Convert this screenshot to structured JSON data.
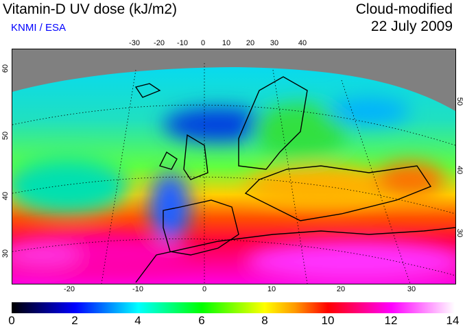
{
  "header": {
    "title": "Vitamin-D UV dose (kJ/m2)",
    "credit": "KNMI / ESA",
    "product": "Cloud-modified",
    "date": "22 July 2009"
  },
  "map": {
    "top_lon_ticks": [
      "-30",
      "-20",
      "-10",
      "0",
      "10",
      "20",
      "30",
      "40"
    ],
    "bottom_lon_ticks": [
      "-20",
      "-10",
      "0",
      "10",
      "20",
      "30"
    ],
    "left_lat_ticks": [
      "60",
      "50",
      "40",
      "30"
    ],
    "right_lat_ticks": [
      "50",
      "40",
      "30"
    ],
    "no_data_color": "#808080"
  },
  "colorbar": {
    "labels": [
      "0",
      "2",
      "4",
      "6",
      "8",
      "10",
      "12",
      "14"
    ],
    "min": 0,
    "max": 14,
    "colors": [
      "#000000",
      "#0000ff",
      "#00ffff",
      "#00ff00",
      "#ffff00",
      "#ff0000",
      "#ff00ff",
      "#ffffff"
    ]
  }
}
